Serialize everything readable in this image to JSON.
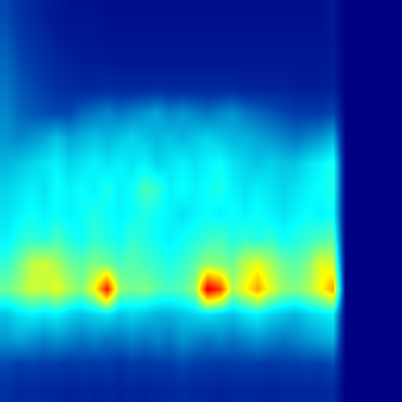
{
  "chart_data": {
    "type": "heatmap",
    "color": "Jet",
    "tick_labels": false,
    "grid": false,
    "xlim": [
      -0.5,
      31.5
    ],
    "ylim": [
      15.5,
      -0.5
    ],
    "color_range": [
      0,
      1
    ],
    "cells": [
      [
        0.14,
        0.1,
        0.08,
        0.06,
        0.05,
        0.04,
        0.04,
        0.04,
        0.03,
        0.03,
        0.03,
        0.03,
        0.03,
        0.03,
        0.03,
        0.03,
        0.03,
        0.03,
        0.03,
        0.03,
        0.03,
        0.03,
        0.03,
        0.03,
        0.03,
        0.03,
        0.05,
        0,
        0,
        0,
        0,
        0
      ],
      [
        0.16,
        0.12,
        0.1,
        0.08,
        0.06,
        0.05,
        0.05,
        0.05,
        0.04,
        0.04,
        0.04,
        0.04,
        0.04,
        0.04,
        0.04,
        0.04,
        0.04,
        0.04,
        0.04,
        0.04,
        0.04,
        0.04,
        0.04,
        0.04,
        0.04,
        0.04,
        0.05,
        0,
        0,
        0,
        0,
        0
      ],
      [
        0.18,
        0.14,
        0.12,
        0.1,
        0.08,
        0.07,
        0.06,
        0.06,
        0.06,
        0.05,
        0.05,
        0.05,
        0.05,
        0.05,
        0.05,
        0.05,
        0.05,
        0.05,
        0.05,
        0.05,
        0.05,
        0.05,
        0.05,
        0.05,
        0.05,
        0.05,
        0.06,
        0,
        0,
        0,
        0,
        0
      ],
      [
        0.2,
        0.16,
        0.14,
        0.12,
        0.1,
        0.09,
        0.08,
        0.08,
        0.09,
        0.08,
        0.08,
        0.08,
        0.09,
        0.08,
        0.08,
        0.08,
        0.08,
        0.08,
        0.08,
        0.07,
        0.07,
        0.07,
        0.07,
        0.06,
        0.06,
        0.06,
        0.07,
        0,
        0,
        0,
        0,
        0
      ],
      [
        0.22,
        0.18,
        0.16,
        0.15,
        0.14,
        0.14,
        0.18,
        0.2,
        0.22,
        0.2,
        0.22,
        0.24,
        0.26,
        0.22,
        0.24,
        0.22,
        0.2,
        0.22,
        0.24,
        0.2,
        0.18,
        0.16,
        0.14,
        0.12,
        0.12,
        0.12,
        0.14,
        0,
        0,
        0,
        0,
        0
      ],
      [
        0.24,
        0.22,
        0.24,
        0.26,
        0.3,
        0.26,
        0.28,
        0.3,
        0.28,
        0.3,
        0.32,
        0.3,
        0.28,
        0.3,
        0.28,
        0.3,
        0.32,
        0.3,
        0.28,
        0.28,
        0.26,
        0.24,
        0.22,
        0.2,
        0.22,
        0.24,
        0.28,
        0,
        0,
        0,
        0,
        0
      ],
      [
        0.28,
        0.3,
        0.32,
        0.34,
        0.36,
        0.32,
        0.34,
        0.36,
        0.34,
        0.36,
        0.34,
        0.36,
        0.32,
        0.34,
        0.36,
        0.34,
        0.36,
        0.38,
        0.34,
        0.32,
        0.3,
        0.32,
        0.3,
        0.3,
        0.34,
        0.36,
        0.4,
        0,
        0,
        0,
        0,
        0
      ],
      [
        0.32,
        0.34,
        0.36,
        0.34,
        0.38,
        0.36,
        0.38,
        0.36,
        0.4,
        0.36,
        0.38,
        0.44,
        0.42,
        0.36,
        0.38,
        0.36,
        0.38,
        0.4,
        0.36,
        0.34,
        0.36,
        0.34,
        0.32,
        0.34,
        0.36,
        0.38,
        0.4,
        0,
        0,
        0,
        0,
        0
      ],
      [
        0.34,
        0.36,
        0.38,
        0.36,
        0.38,
        0.36,
        0.38,
        0.4,
        0.38,
        0.36,
        0.38,
        0.4,
        0.38,
        0.36,
        0.34,
        0.36,
        0.38,
        0.36,
        0.38,
        0.36,
        0.38,
        0.36,
        0.34,
        0.36,
        0.38,
        0.36,
        0.38,
        0,
        0,
        0,
        0,
        0
      ],
      [
        0.36,
        0.4,
        0.42,
        0.4,
        0.44,
        0.4,
        0.38,
        0.42,
        0.4,
        0.38,
        0.42,
        0.4,
        0.38,
        0.36,
        0.38,
        0.4,
        0.42,
        0.44,
        0.4,
        0.42,
        0.4,
        0.42,
        0.38,
        0.4,
        0.42,
        0.44,
        0.46,
        0,
        0,
        0,
        0,
        0
      ],
      [
        0.42,
        0.48,
        0.56,
        0.58,
        0.54,
        0.48,
        0.46,
        0.5,
        0.48,
        0.44,
        0.46,
        0.44,
        0.42,
        0.4,
        0.42,
        0.46,
        0.52,
        0.5,
        0.48,
        0.56,
        0.6,
        0.54,
        0.48,
        0.46,
        0.5,
        0.6,
        0.58,
        0,
        0,
        0,
        0,
        0
      ],
      [
        0.48,
        0.52,
        0.58,
        0.56,
        0.6,
        0.54,
        0.5,
        0.62,
        0.86,
        0.52,
        0.48,
        0.5,
        0.46,
        0.44,
        0.46,
        0.52,
        0.9,
        0.82,
        0.54,
        0.62,
        0.72,
        0.6,
        0.52,
        0.5,
        0.54,
        0.62,
        0.72,
        0,
        0,
        0,
        0,
        0
      ],
      [
        0.3,
        0.34,
        0.36,
        0.34,
        0.36,
        0.32,
        0.3,
        0.32,
        0.34,
        0.3,
        0.32,
        0.3,
        0.28,
        0.28,
        0.3,
        0.32,
        0.34,
        0.32,
        0.3,
        0.34,
        0.36,
        0.32,
        0.3,
        0.28,
        0.32,
        0.34,
        0.36,
        0,
        0,
        0,
        0,
        0
      ],
      [
        0.24,
        0.26,
        0.24,
        0.22,
        0.24,
        0.22,
        0.2,
        0.22,
        0.2,
        0.2,
        0.22,
        0.2,
        0.22,
        0.2,
        0.24,
        0.22,
        0.2,
        0.22,
        0.2,
        0.22,
        0.24,
        0.22,
        0.2,
        0.22,
        0.24,
        0.26,
        0.28,
        0,
        0,
        0,
        0,
        0
      ],
      [
        0.14,
        0.12,
        0.13,
        0.12,
        0.12,
        0.11,
        0.12,
        0.11,
        0.12,
        0.1,
        0.12,
        0.11,
        0.12,
        0.12,
        0.14,
        0.12,
        0.12,
        0.11,
        0.12,
        0.12,
        0.12,
        0.11,
        0.12,
        0.12,
        0.13,
        0.12,
        0.14,
        0,
        0,
        0,
        0,
        0
      ],
      [
        0.1,
        0.08,
        0.09,
        0.08,
        0.08,
        0.07,
        0.08,
        0.07,
        0.08,
        0.07,
        0.08,
        0.07,
        0.08,
        0.08,
        0.09,
        0.08,
        0.08,
        0.07,
        0.08,
        0.08,
        0.08,
        0.07,
        0.08,
        0.08,
        0.08,
        0.08,
        0.09,
        0,
        0,
        0,
        0,
        0
      ]
    ]
  }
}
